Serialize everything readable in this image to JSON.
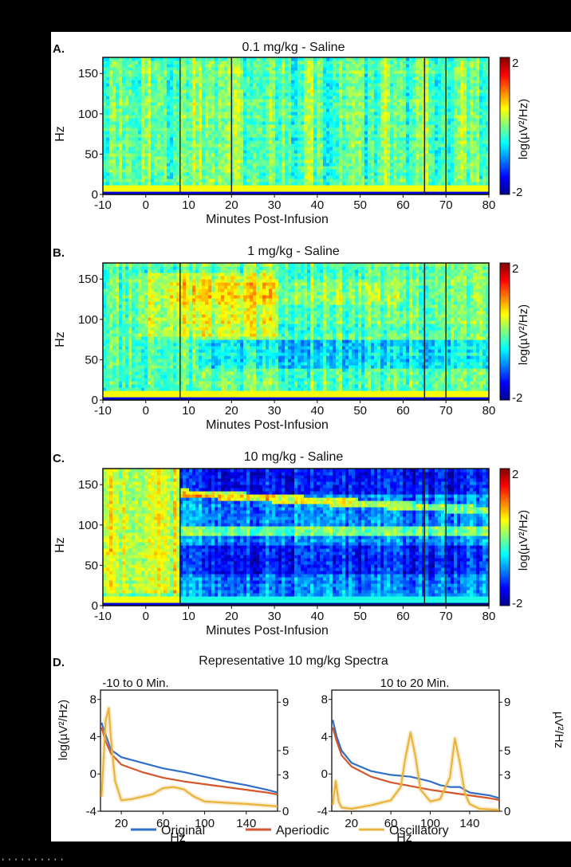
{
  "figure": {
    "panels": [
      {
        "letter": "A.",
        "title": "0.1 mg/kg - Saline"
      },
      {
        "letter": "B.",
        "title": "1 mg/kg - Saline"
      },
      {
        "letter": "C.",
        "title": "10 mg/kg - Saline"
      }
    ],
    "panel_d": {
      "letter": "D.",
      "title": "Representative 10 mg/kg Spectra",
      "left_subtitle": "-10 to 0 Min.",
      "right_subtitle": "10 to 20 Min.",
      "left_ylabel": "log(µV²/Hz)",
      "right_ylabel": "µV²/Hz",
      "xlabel": "Hz"
    },
    "legend": [
      "Original",
      "Aperiodic",
      "Oscillatory"
    ],
    "colors": {
      "original": "#2f6fc8",
      "aperiodic": "#d4562c",
      "oscillatory": "#e9b33c",
      "colormap": "jet"
    }
  },
  "chart_data": [
    {
      "type": "heatmap",
      "title": "0.1 mg/kg - Saline",
      "xlabel": "Minutes Post-Infusion",
      "ylabel": "Hz",
      "xlim": [
        -10,
        80
      ],
      "ylim": [
        0,
        170
      ],
      "xticks": [
        -10,
        0,
        10,
        20,
        30,
        40,
        50,
        60,
        70,
        80
      ],
      "yticks": [
        0,
        50,
        100,
        150
      ],
      "colorbar": {
        "label": "log(µV²/Hz)",
        "range": [
          -2,
          2
        ],
        "ticks": [
          -2,
          2
        ]
      },
      "dark_columns_min": [
        8,
        20,
        65,
        70
      ]
    },
    {
      "type": "heatmap",
      "title": "1 mg/kg - Saline",
      "xlabel": "Minutes Post-Infusion",
      "ylabel": "Hz",
      "xlim": [
        -10,
        80
      ],
      "ylim": [
        0,
        170
      ],
      "xticks": [
        -10,
        0,
        10,
        20,
        30,
        40,
        50,
        60,
        70,
        80
      ],
      "yticks": [
        0,
        50,
        100,
        150
      ],
      "colorbar": {
        "label": "log(µV²/Hz)",
        "range": [
          -2,
          2
        ],
        "ticks": [
          -2,
          2
        ]
      },
      "dark_columns_min": [
        8,
        65,
        70
      ]
    },
    {
      "type": "heatmap",
      "title": "10 mg/kg - Saline",
      "xlabel": "Minutes Post-Infusion",
      "ylabel": "Hz",
      "xlim": [
        -10,
        80
      ],
      "ylim": [
        0,
        170
      ],
      "xticks": [
        -10,
        0,
        10,
        20,
        30,
        40,
        50,
        60,
        70,
        80
      ],
      "yticks": [
        0,
        50,
        100,
        150
      ],
      "colorbar": {
        "label": "log(µV²/Hz)",
        "range": [
          -2,
          2
        ],
        "ticks": [
          -2,
          2
        ]
      },
      "dark_columns_min": [
        8,
        65,
        70
      ]
    },
    {
      "type": "line",
      "title": "-10 to 0 Min.",
      "xlabel": "Hz",
      "ylabel": "log(µV²/Hz)",
      "y2label": "",
      "xlim": [
        0,
        170
      ],
      "ylim": [
        -4,
        9
      ],
      "y2lim": [
        0,
        10
      ],
      "xticks": [
        20,
        60,
        100,
        140
      ],
      "yticks": [
        -4,
        0,
        4,
        8
      ],
      "y2ticks": [
        0,
        3,
        5,
        9
      ],
      "series": [
        {
          "name": "Original",
          "axis": "left",
          "x": [
            1,
            5,
            10,
            20,
            40,
            60,
            80,
            100,
            120,
            140,
            160,
            170
          ],
          "y": [
            5.5,
            4.2,
            2.6,
            1.8,
            1.2,
            0.6,
            0.2,
            -0.3,
            -0.8,
            -1.2,
            -1.7,
            -2.0
          ]
        },
        {
          "name": "Aperiodic",
          "axis": "left",
          "x": [
            1,
            5,
            10,
            20,
            40,
            60,
            80,
            100,
            120,
            140,
            160,
            170
          ],
          "y": [
            5.0,
            3.5,
            2.2,
            1.0,
            0.2,
            -0.4,
            -0.8,
            -1.1,
            -1.4,
            -1.7,
            -2.0,
            -2.2
          ]
        },
        {
          "name": "Oscillatory",
          "axis": "right",
          "x": [
            1,
            5,
            8,
            10,
            14,
            20,
            30,
            40,
            50,
            60,
            70,
            80,
            90,
            100,
            120,
            140,
            170
          ],
          "y": [
            1.2,
            7.5,
            8.5,
            6.0,
            2.5,
            0.9,
            1.0,
            1.2,
            1.4,
            1.9,
            2.0,
            1.8,
            1.2,
            0.8,
            0.7,
            0.6,
            0.4
          ]
        }
      ]
    },
    {
      "type": "line",
      "title": "10 to 20 Min.",
      "xlabel": "Hz",
      "ylabel": "",
      "y2label": "µV²/Hz",
      "xlim": [
        0,
        170
      ],
      "ylim": [
        -4,
        9
      ],
      "y2lim": [
        0,
        10
      ],
      "xticks": [
        20,
        60,
        100,
        140
      ],
      "yticks": [
        -4,
        0,
        4,
        8
      ],
      "y2ticks": [
        0,
        3,
        5,
        9
      ],
      "series": [
        {
          "name": "Original",
          "axis": "left",
          "x": [
            1,
            5,
            10,
            20,
            40,
            60,
            80,
            100,
            110,
            120,
            130,
            140,
            160,
            170
          ],
          "y": [
            5.8,
            4.0,
            2.5,
            1.2,
            0.3,
            -0.1,
            -0.3,
            -0.8,
            -1.2,
            -1.4,
            -1.4,
            -2.0,
            -2.3,
            -2.6
          ]
        },
        {
          "name": "Aperiodic",
          "axis": "left",
          "x": [
            1,
            5,
            10,
            20,
            40,
            60,
            80,
            100,
            120,
            140,
            160,
            170
          ],
          "y": [
            5.0,
            3.5,
            2.0,
            0.8,
            -0.3,
            -0.9,
            -1.3,
            -1.7,
            -2.0,
            -2.3,
            -2.6,
            -2.8
          ]
        },
        {
          "name": "Oscillatory",
          "axis": "right",
          "x": [
            1,
            4,
            7,
            10,
            20,
            40,
            60,
            70,
            75,
            80,
            85,
            90,
            100,
            110,
            120,
            125,
            130,
            135,
            140,
            150,
            170
          ],
          "y": [
            0.5,
            2.5,
            0.8,
            0.3,
            0.2,
            0.5,
            0.9,
            2.0,
            4.5,
            6.5,
            4.5,
            1.8,
            0.8,
            1.0,
            2.8,
            6.0,
            4.0,
            1.5,
            0.6,
            0.2,
            0.1
          ]
        }
      ]
    }
  ]
}
